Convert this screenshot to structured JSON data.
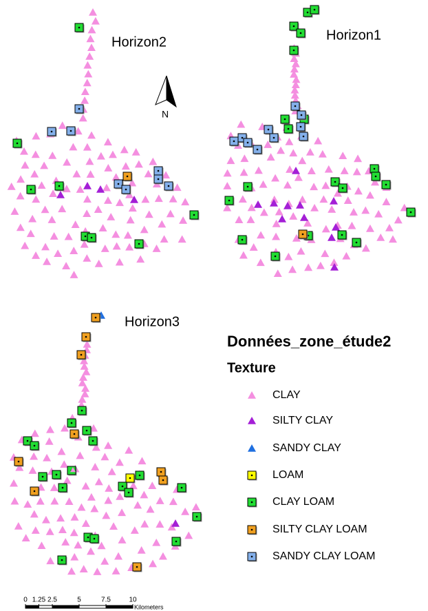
{
  "map": {
    "panels": [
      {
        "title": "Horizon2"
      },
      {
        "title": "Horizon1"
      },
      {
        "title": "Horizon3"
      }
    ],
    "north_label": "N",
    "legend": {
      "title": "Données_zone_étude2",
      "subtitle": "Texture",
      "items": [
        {
          "label": "CLAY",
          "shape": "triangle",
          "color": "#f48fe0"
        },
        {
          "label": "SILTY CLAY",
          "shape": "triangle",
          "color": "#a41fd6"
        },
        {
          "label": "SANDY CLAY",
          "shape": "triangle",
          "color": "#1f6fe0"
        },
        {
          "label": "LOAM",
          "shape": "square",
          "color": "#ffff00"
        },
        {
          "label": "CLAY LOAM",
          "shape": "square",
          "color": "#22dd33"
        },
        {
          "label": "SILTY CLAY LOAM",
          "shape": "square",
          "color": "#f0a020"
        },
        {
          "label": "SANDY CLAY LOAM",
          "shape": "square",
          "color": "#84b0ea"
        }
      ]
    },
    "scale_bar": {
      "ticks": [
        0,
        1.25,
        2.5,
        5,
        7.5,
        10
      ],
      "unit": "Kilometers"
    }
  }
}
